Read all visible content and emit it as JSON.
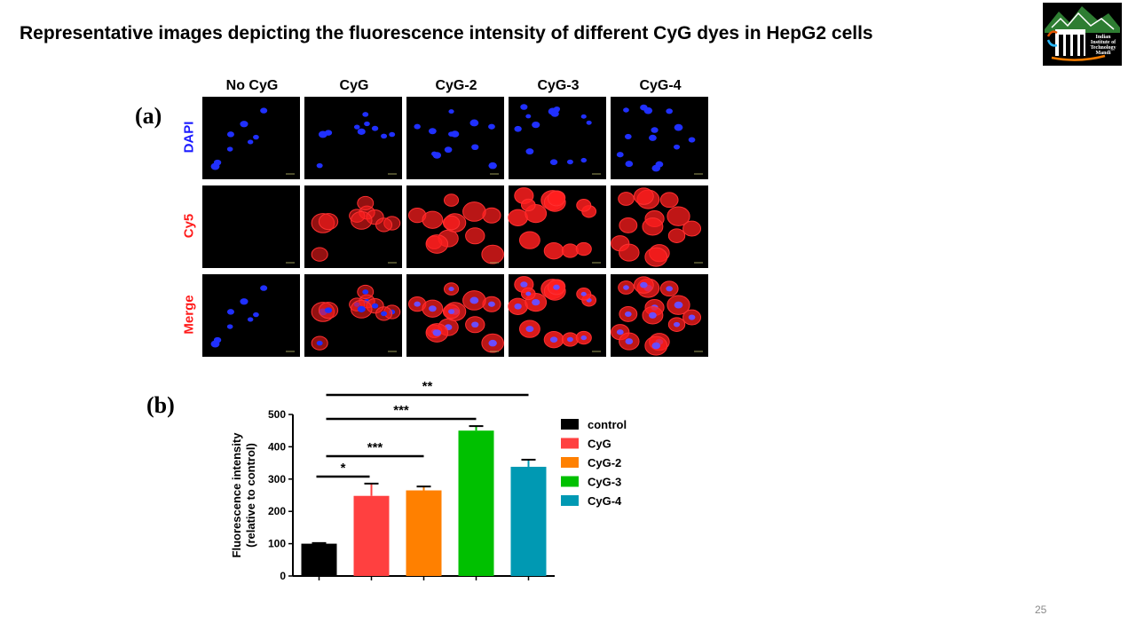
{
  "slide": {
    "title": "Representative images depicting the fluorescence intensity of different CyG dyes in HepG2 cells",
    "page_number": "25",
    "logo_text": [
      "Indian",
      "Institute of",
      "Technology",
      "Mandi"
    ]
  },
  "panel_a": {
    "label": "(a)",
    "columns": [
      "No CyG",
      "CyG",
      "CyG-2",
      "CyG-3",
      "CyG-4"
    ],
    "rows": [
      {
        "label": "DAPI",
        "color": "#1a1aff"
      },
      {
        "label": "Cy5",
        "color": "#ff1a1a"
      },
      {
        "label": "Merge",
        "color": "#ff1a1a"
      }
    ]
  },
  "panel_b": {
    "label": "(b)"
  },
  "chart_data": {
    "type": "bar",
    "ylabel": "Fluorescence intensity\n(relative to control)",
    "xlabel": "",
    "ylim": [
      0,
      500
    ],
    "yticks": [
      0,
      100,
      200,
      300,
      400,
      500
    ],
    "categories": [
      "control",
      "CyG",
      "CyG-2",
      "CyG-3",
      "CyG-4"
    ],
    "values": [
      100,
      248,
      265,
      450,
      338
    ],
    "errors": [
      2,
      38,
      12,
      14,
      22
    ],
    "colors": [
      "#000000",
      "#ff4040",
      "#ff8000",
      "#00c000",
      "#0099b3"
    ],
    "legend": [
      "control",
      "CyG",
      "CyG-2",
      "CyG-3",
      "CyG-4"
    ],
    "legend_position": "right",
    "significance": [
      {
        "from": 0,
        "to": 4,
        "label": "**"
      },
      {
        "from": 0,
        "to": 3,
        "label": "***"
      },
      {
        "from": 0,
        "to": 2,
        "label": "***"
      },
      {
        "from": 0,
        "to": 1,
        "label": "*"
      }
    ]
  }
}
